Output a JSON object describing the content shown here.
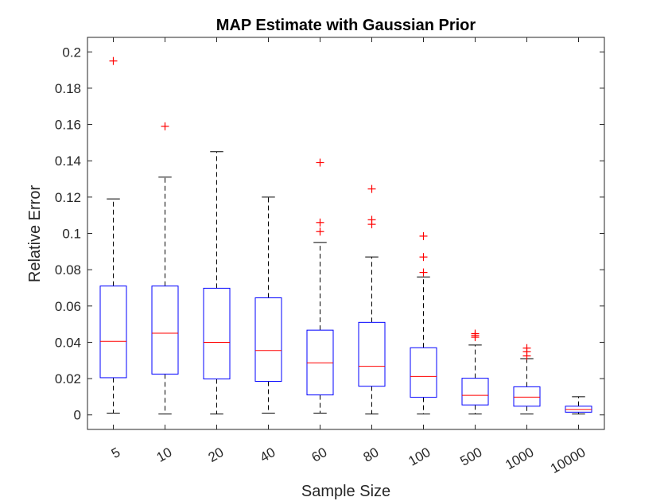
{
  "chart_data": {
    "type": "box",
    "title": "MAP Estimate with Gaussian Prior",
    "xlabel": "Sample Size",
    "ylabel": "Relative Error",
    "ylim": [
      -0.008,
      0.208
    ],
    "yticks": [
      0,
      0.02,
      0.04,
      0.06,
      0.08,
      0.1,
      0.12,
      0.14,
      0.16,
      0.18,
      0.2
    ],
    "grid": false,
    "colors": {
      "box": "#0000ff",
      "median": "#ff0000",
      "whisker": "#000000",
      "outlier": "#ff0000",
      "axes": "#262626"
    },
    "categories": [
      "5",
      "10",
      "20",
      "40",
      "60",
      "80",
      "100",
      "500",
      "1000",
      "10000"
    ],
    "boxes": [
      {
        "min": 0.001,
        "q1": 0.0205,
        "median": 0.0405,
        "q3": 0.071,
        "max": 0.119,
        "outliers": [
          0.195
        ]
      },
      {
        "min": 0.0005,
        "q1": 0.0225,
        "median": 0.045,
        "q3": 0.071,
        "max": 0.131,
        "outliers": [
          0.159
        ]
      },
      {
        "min": 0.0005,
        "q1": 0.0198,
        "median": 0.04,
        "q3": 0.0698,
        "max": 0.145,
        "outliers": []
      },
      {
        "min": 0.001,
        "q1": 0.0185,
        "median": 0.0355,
        "q3": 0.0645,
        "max": 0.12,
        "outliers": []
      },
      {
        "min": 0.001,
        "q1": 0.011,
        "median": 0.0287,
        "q3": 0.0467,
        "max": 0.095,
        "outliers": [
          0.101,
          0.106,
          0.139
        ]
      },
      {
        "min": 0.0005,
        "q1": 0.0158,
        "median": 0.0268,
        "q3": 0.051,
        "max": 0.087,
        "outliers": [
          0.105,
          0.1075,
          0.1245
        ]
      },
      {
        "min": 0.0005,
        "q1": 0.0097,
        "median": 0.0212,
        "q3": 0.037,
        "max": 0.076,
        "outliers": [
          0.0785,
          0.087,
          0.0985
        ]
      },
      {
        "min": 0.0005,
        "q1": 0.0055,
        "median": 0.0108,
        "q3": 0.0202,
        "max": 0.0385,
        "outliers": [
          0.0428,
          0.0438,
          0.0448
        ]
      },
      {
        "min": 0.0005,
        "q1": 0.0048,
        "median": 0.0098,
        "q3": 0.0155,
        "max": 0.031,
        "outliers": [
          0.0325,
          0.0348,
          0.0368
        ]
      },
      {
        "min": 0.0005,
        "q1": 0.0015,
        "median": 0.003,
        "q3": 0.0048,
        "max": 0.01,
        "outliers": []
      }
    ]
  }
}
